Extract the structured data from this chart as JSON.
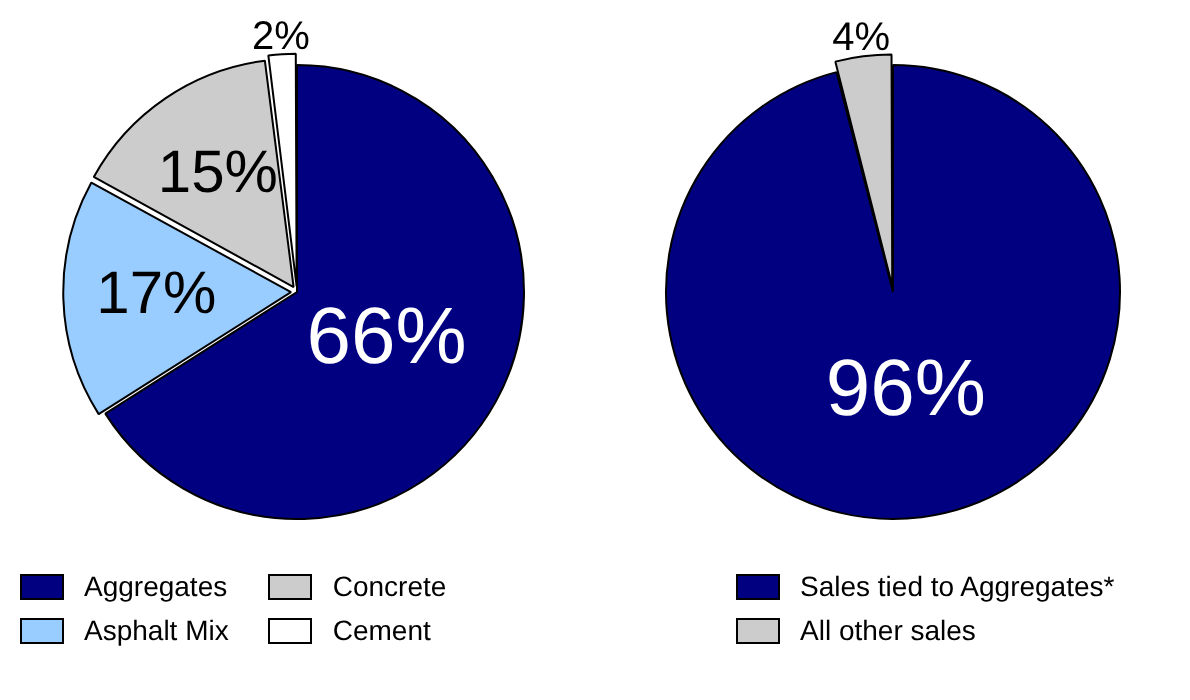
{
  "chart_data": [
    {
      "type": "pie",
      "categories": [
        "Aggregates",
        "Asphalt Mix",
        "Concrete",
        "Cement"
      ],
      "values": [
        66,
        17,
        15,
        2
      ],
      "colors": [
        "#000080",
        "#99ccff",
        "#cccccc",
        "#ffffff"
      ],
      "value_labels": [
        "66%",
        "17%",
        "15%",
        "2%"
      ],
      "legend": "bottom"
    },
    {
      "type": "pie",
      "categories": [
        "Sales tied to Aggregates*",
        "All other sales"
      ],
      "values": [
        96,
        4
      ],
      "colors": [
        "#000080",
        "#cccccc"
      ],
      "value_labels": [
        "96%",
        "4%"
      ],
      "legend": "bottom"
    }
  ]
}
